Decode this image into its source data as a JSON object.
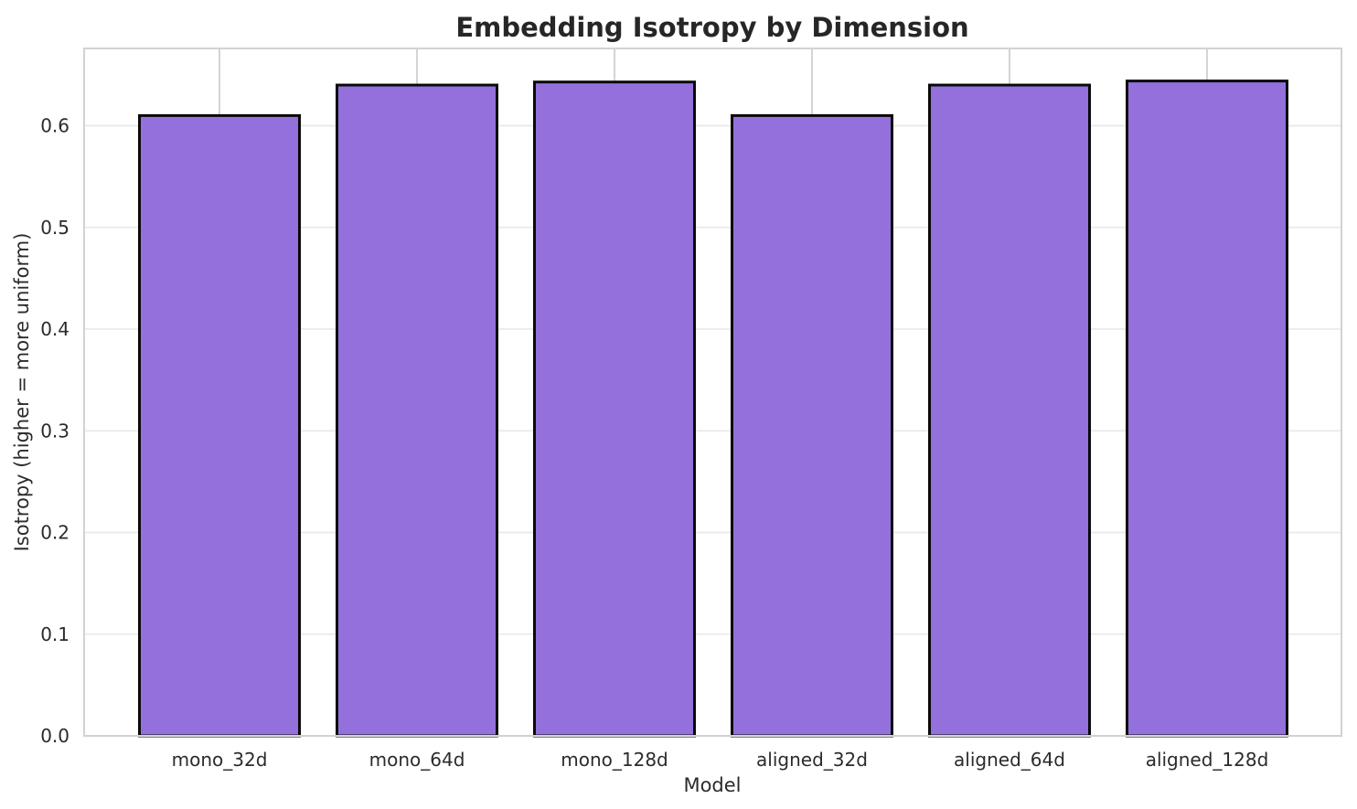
{
  "chart_data": {
    "type": "bar",
    "title": "Embedding Isotropy by Dimension",
    "xlabel": "Model",
    "ylabel": "Isotropy (higher = more uniform)",
    "categories": [
      "mono_32d",
      "mono_64d",
      "mono_128d",
      "aligned_32d",
      "aligned_64d",
      "aligned_128d"
    ],
    "values": [
      0.61,
      0.64,
      0.643,
      0.61,
      0.64,
      0.644
    ],
    "yticks": [
      0.0,
      0.1,
      0.2,
      0.3,
      0.4,
      0.5,
      0.6
    ],
    "ytick_labels": [
      "0.0",
      "0.1",
      "0.2",
      "0.3",
      "0.4",
      "0.5",
      "0.6"
    ],
    "ylim": [
      0,
      0.676
    ],
    "grid": "on",
    "legend": "none",
    "orientation": "vertical"
  },
  "colors": {
    "bar_fill": "#9370DB",
    "bar_edge": "#0a0a0a",
    "h_gridline": "#e9e9e9",
    "v_gridline": "#cfcfcf",
    "spine": "#d2d2d2",
    "text": "#2b2b2b",
    "title": "#262626",
    "background": "#ffffff"
  }
}
